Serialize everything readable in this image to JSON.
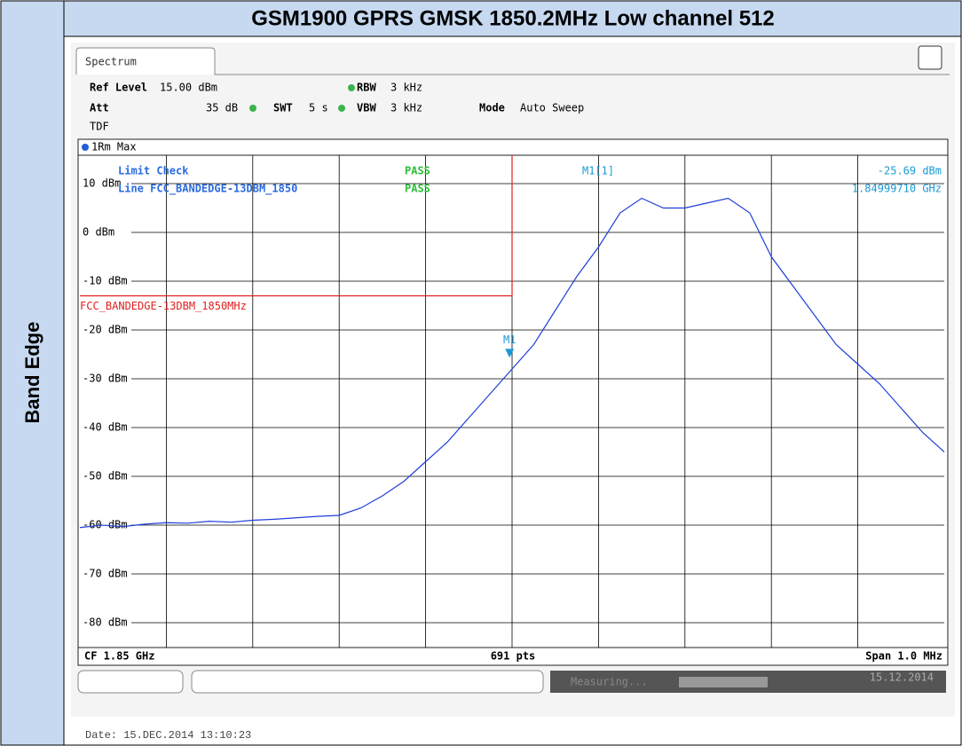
{
  "header": {
    "title": "GSM1900 GPRS GMSK 1850.2MHz Low channel 512",
    "row_label": "Band Edge"
  },
  "ui": {
    "tab": "Spectrum",
    "ref_level_label": "Ref Level",
    "ref_level": "15.00 dBm",
    "rbw_label": "RBW",
    "rbw": "3 kHz",
    "att_label": "Att",
    "att": "35 dB",
    "swt_label": "SWT",
    "swt": "5 s",
    "vbw_label": "VBW",
    "vbw": "3 kHz",
    "mode_label": "Mode",
    "mode": "Auto Sweep",
    "tdf": "TDF",
    "trace_label": "1Rm Max",
    "limit_check": "Limit Check",
    "limit_check_result": "PASS",
    "limit_line_text": "Line FCC_BANDEDGE-13DBM_1850",
    "limit_line_result": "PASS",
    "cf": "CF 1.85 GHz",
    "points": "691 pts",
    "span": "Span 1.0 MHz",
    "status": "Measuring...",
    "status_date": "15.12.2014",
    "date": "Date: 15.DEC.2014  13:10:23"
  },
  "chart_data": {
    "type": "line",
    "x": [
      1.8495,
      1.849525,
      1.84955,
      1.849575,
      1.8496,
      1.849625,
      1.84965,
      1.849675,
      1.8497,
      1.849725,
      1.84975,
      1.849775,
      1.8498,
      1.849825,
      1.84985,
      1.849875,
      1.8499,
      1.849925,
      1.84995,
      1.849975,
      1.85,
      1.850025,
      1.85005,
      1.850075,
      1.8501,
      1.850125,
      1.85015,
      1.850175,
      1.8502,
      1.850225,
      1.85025,
      1.850275,
      1.8503,
      1.850325,
      1.85035,
      1.850375,
      1.8504,
      1.850425,
      1.85045,
      1.850475,
      1.8505
    ],
    "series": [
      {
        "name": "1Rm Max",
        "color": "#1f3fd8",
        "values": [
          -60.5,
          -60,
          -60.3,
          -59.8,
          -59.5,
          -59.6,
          -59.2,
          -59.4,
          -59,
          -58.8,
          -58.5,
          -58.2,
          -58,
          -56.5,
          -54,
          -51,
          -47,
          -43,
          -38,
          -33,
          -28,
          -23,
          -16,
          -9,
          -3,
          4,
          7,
          5,
          5,
          6,
          7,
          4,
          -5,
          -11,
          -17,
          -23,
          -27,
          -31,
          -36,
          -41,
          -45
        ]
      }
    ],
    "xlim": [
      1.8495,
      1.8505
    ],
    "ylim": [
      -85,
      15
    ],
    "yticks": [
      {
        "value": 10,
        "label": "10 dBm"
      },
      {
        "value": 0,
        "label": "0 dBm"
      },
      {
        "value": -10,
        "label": "-10 dBm"
      },
      {
        "value": -20,
        "label": "-20 dBm"
      },
      {
        "value": -30,
        "label": "-30 dBm"
      },
      {
        "value": -40,
        "label": "-40 dBm"
      },
      {
        "value": -50,
        "label": "-50 dBm"
      },
      {
        "value": -60,
        "label": "-60 dBm"
      },
      {
        "value": -70,
        "label": "-70 dBm"
      },
      {
        "value": -80,
        "label": "-80 dBm"
      }
    ],
    "grid": true,
    "limit_line": {
      "name": "FCC_BANDEDGE-13DBM_1850MHz",
      "value": -13,
      "x_end": 1.85,
      "color": "#e02020"
    },
    "marker": {
      "label": "M1",
      "readout_label": "M1[1]",
      "x": 1.8499971,
      "y": -25.69,
      "x_label": "1.84999710 GHz",
      "y_label": "-25.69 dBm",
      "color": "#1a9ad6"
    }
  }
}
